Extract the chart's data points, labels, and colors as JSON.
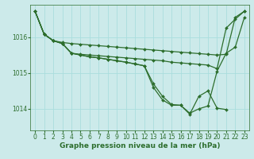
{
  "background_color": "#cceaea",
  "grid_color": "#aadddd",
  "line_color": "#2d6e2d",
  "marker": "D",
  "marker_size": 2.0,
  "line_width": 0.9,
  "xlabel": "Graphe pression niveau de la mer (hPa)",
  "xlabel_fontsize": 6.5,
  "tick_fontsize": 5.5,
  "ylim": [
    1013.4,
    1016.9
  ],
  "xlim": [
    -0.5,
    23.5
  ],
  "yticks": [
    1014,
    1015,
    1016
  ],
  "xticks": [
    0,
    1,
    2,
    3,
    4,
    5,
    6,
    7,
    8,
    9,
    10,
    11,
    12,
    13,
    14,
    15,
    16,
    17,
    18,
    19,
    20,
    21,
    22,
    23
  ],
  "series": [
    [
      1016.72,
      1016.08,
      1015.9,
      1015.85,
      1015.82,
      1015.8,
      1015.78,
      1015.76,
      1015.74,
      1015.72,
      1015.7,
      1015.68,
      1015.66,
      1015.64,
      1015.62,
      1015.6,
      1015.58,
      1015.56,
      1015.54,
      1015.52,
      1015.5,
      1015.52,
      1016.55,
      1016.72
    ],
    [
      1016.72,
      1016.08,
      1015.9,
      1015.82,
      1015.55,
      1015.52,
      1015.5,
      1015.48,
      1015.46,
      1015.44,
      1015.42,
      1015.4,
      1015.38,
      1015.36,
      1015.34,
      1015.3,
      1015.28,
      1015.26,
      1015.24,
      1015.22,
      1015.12,
      1016.25,
      1016.5,
      1016.72
    ],
    [
      1016.72,
      1016.08,
      1015.9,
      1015.82,
      1015.55,
      1015.5,
      1015.45,
      1015.42,
      1015.38,
      1015.34,
      1015.3,
      1015.25,
      1015.2,
      1014.7,
      1014.35,
      1014.12,
      1014.1,
      1013.88,
      1014.0,
      1014.08,
      1015.05,
      1015.55,
      1015.72,
      1016.55
    ],
    [
      1016.72,
      1016.08,
      1015.9,
      1015.82,
      1015.55,
      1015.5,
      1015.45,
      1015.42,
      1015.38,
      1015.34,
      1015.3,
      1015.25,
      1015.2,
      1014.6,
      1014.25,
      1014.1,
      1014.1,
      1013.85,
      1014.35,
      1014.5,
      1014.02,
      1013.98,
      null,
      null
    ]
  ]
}
